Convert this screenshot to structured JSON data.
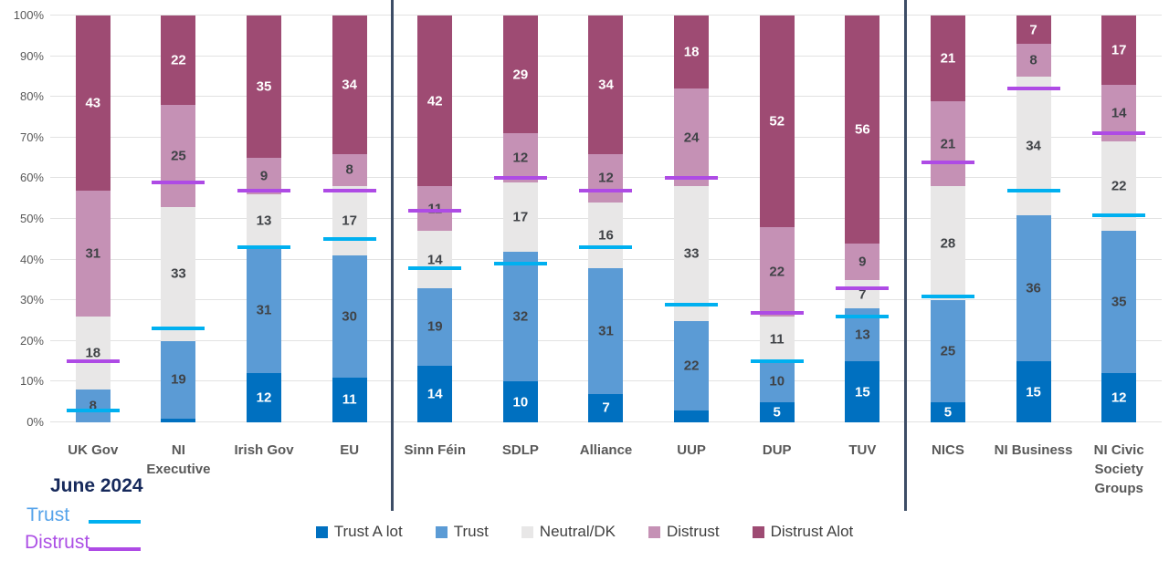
{
  "chart_data": {
    "type": "bar",
    "subtype": "stacked-percent-with-benchmark-markers",
    "title": "",
    "xlabel": "",
    "ylabel": "",
    "ylim": [
      0,
      100
    ],
    "grid": true,
    "y_ticks": [
      "0%",
      "10%",
      "20%",
      "30%",
      "40%",
      "50%",
      "60%",
      "70%",
      "80%",
      "90%",
      "100%"
    ],
    "categories": [
      "UK Gov",
      "NI Executive",
      "Irish Gov",
      "EU",
      "Sinn Féin",
      "SDLP",
      "Alliance",
      "UUP",
      "DUP",
      "TUV",
      "NICS",
      "NI Business",
      "NI Civic Society Groups"
    ],
    "group_separators_after_index": [
      3,
      9
    ],
    "label_min_value": 5,
    "series": [
      {
        "name": "Trust A lot",
        "color": "#0070c0",
        "label_color": "#ffffff",
        "values": [
          0,
          1,
          12,
          11,
          14,
          10,
          7,
          3,
          5,
          15,
          5,
          15,
          12
        ]
      },
      {
        "name": "Trust",
        "color": "#5b9bd5",
        "label_color": "#404347",
        "values": [
          8,
          19,
          31,
          30,
          19,
          32,
          31,
          22,
          10,
          13,
          25,
          36,
          35
        ]
      },
      {
        "name": "Neutral/DK",
        "color": "#e8e7e7",
        "label_color": "#404347",
        "values": [
          18,
          33,
          13,
          17,
          14,
          17,
          16,
          33,
          11,
          7,
          28,
          34,
          22
        ]
      },
      {
        "name": "Distrust",
        "color": "#c591b5",
        "label_color": "#404347",
        "values": [
          31,
          25,
          9,
          8,
          11,
          12,
          12,
          24,
          22,
          9,
          21,
          8,
          14
        ]
      },
      {
        "name": "Distrust Alot",
        "color": "#9e4b73",
        "label_color": "#ffffff",
        "values": [
          43,
          22,
          35,
          34,
          42,
          29,
          34,
          18,
          52,
          56,
          21,
          7,
          17
        ]
      }
    ],
    "markers": {
      "trust": {
        "label": "Trust",
        "color": "#00b0f0",
        "values": [
          3,
          23,
          43,
          45,
          38,
          39,
          43,
          29,
          15,
          26,
          31,
          57,
          51
        ]
      },
      "distrust": {
        "label": "Distrust",
        "color": "#ae4be5",
        "values": [
          15,
          59,
          57,
          57,
          52,
          60,
          57,
          60,
          27,
          33,
          64,
          82,
          71
        ]
      }
    },
    "legend_position": "bottom"
  },
  "marker_legend": {
    "title": "June 2024",
    "trust_label": "Trust",
    "distrust_label": "Distrust"
  },
  "colors": {
    "gridline": "#e2e2e2",
    "separator": "#3d4d66",
    "axis_text": "#595959",
    "legend_text": "#404040",
    "marker_legend_title": "#16295b"
  }
}
